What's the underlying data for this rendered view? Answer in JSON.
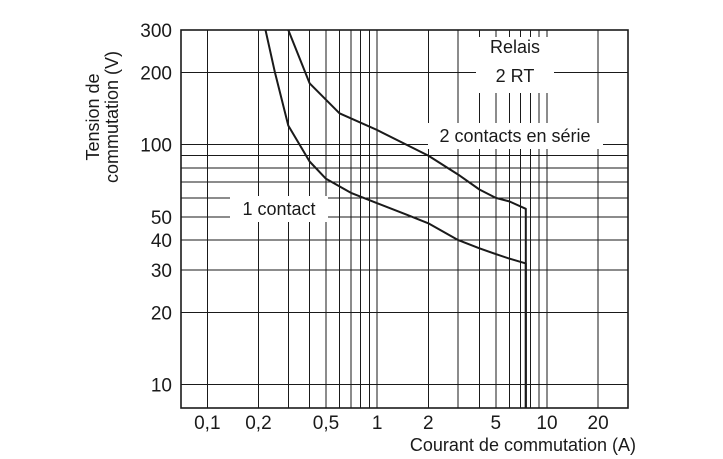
{
  "chart_data": {
    "type": "line",
    "title": "",
    "xlabel": "Courant de commutation (A)",
    "ylabel_line1": "Tension de",
    "ylabel_line2": "commutation (V)",
    "x_scale": "log",
    "y_scale": "log",
    "xlim": [
      0.07,
      30
    ],
    "ylim": [
      8,
      300
    ],
    "grid": true,
    "x_gridlines": [
      0.1,
      0.2,
      0.3,
      0.4,
      0.5,
      0.6,
      0.7,
      0.8,
      0.9,
      1,
      2,
      3,
      4,
      5,
      6,
      7,
      8,
      9,
      10,
      20,
      30
    ],
    "y_gridlines": [
      10,
      20,
      30,
      40,
      50,
      60,
      70,
      80,
      90,
      100,
      200,
      300
    ],
    "x_ticks": [
      {
        "value": 0.1,
        "label": "0,1"
      },
      {
        "value": 0.2,
        "label": "0,2"
      },
      {
        "value": 0.5,
        "label": "0,5"
      },
      {
        "value": 1,
        "label": "1"
      },
      {
        "value": 2,
        "label": "2"
      },
      {
        "value": 5,
        "label": "5"
      },
      {
        "value": 10,
        "label": "10"
      },
      {
        "value": 20,
        "label": "20"
      }
    ],
    "y_ticks": [
      {
        "value": 10,
        "label": "10"
      },
      {
        "value": 20,
        "label": "20"
      },
      {
        "value": 30,
        "label": "30"
      },
      {
        "value": 40,
        "label": "40"
      },
      {
        "value": 50,
        "label": "50"
      },
      {
        "value": 100,
        "label": "100"
      },
      {
        "value": 200,
        "label": "200"
      },
      {
        "value": 300,
        "label": "300"
      }
    ],
    "series": [
      {
        "name": "1 contact",
        "points": [
          [
            0.22,
            300
          ],
          [
            0.25,
            200
          ],
          [
            0.3,
            120
          ],
          [
            0.4,
            85
          ],
          [
            0.5,
            72
          ],
          [
            0.7,
            63
          ],
          [
            1,
            57
          ],
          [
            1.5,
            51
          ],
          [
            2,
            47
          ],
          [
            3,
            40
          ],
          [
            4,
            37
          ],
          [
            5,
            35
          ],
          [
            6,
            33.5
          ],
          [
            7.5,
            32
          ],
          [
            7.5,
            8
          ]
        ]
      },
      {
        "name": "2 contacts en série",
        "points": [
          [
            0.3,
            300
          ],
          [
            0.4,
            180
          ],
          [
            0.6,
            135
          ],
          [
            1,
            115
          ],
          [
            2,
            90
          ],
          [
            3,
            75
          ],
          [
            4,
            65
          ],
          [
            5,
            60
          ],
          [
            6,
            58
          ],
          [
            7.5,
            54
          ],
          [
            7.5,
            8
          ]
        ]
      }
    ],
    "annotations": {
      "relay_line1": "Relais",
      "relay_line2": "2 RT",
      "series_2_label": "2 contacts en série",
      "series_1_label": "1 contact"
    }
  }
}
